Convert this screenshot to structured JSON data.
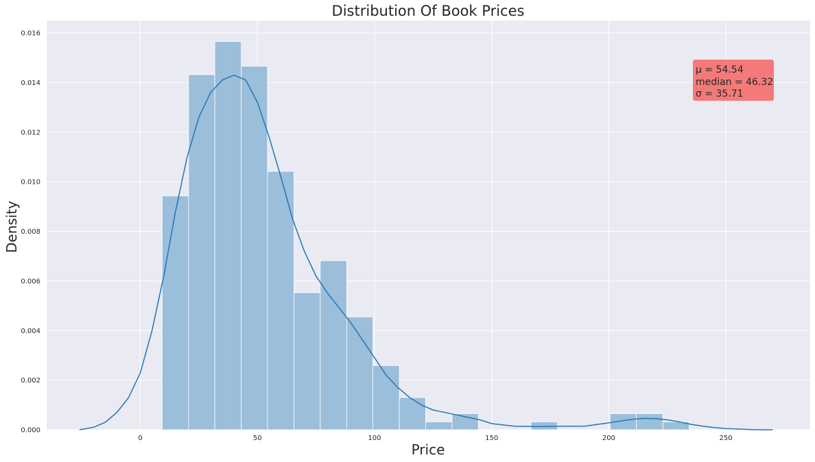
{
  "chart_data": {
    "type": "bar",
    "title": "Distribution Of Book Prices",
    "xlabel": "Price",
    "ylabel": "Density",
    "xlim": [
      -40,
      286
    ],
    "ylim": [
      0,
      0.0165
    ],
    "grid": true,
    "xticks": [
      0,
      50,
      100,
      150,
      200,
      250
    ],
    "yticks": [
      0.0,
      0.002,
      0.004,
      0.006,
      0.008,
      0.01,
      0.012,
      0.014,
      0.016
    ],
    "ytick_labels": [
      "0.000",
      "0.002",
      "0.004",
      "0.006",
      "0.008",
      "0.010",
      "0.012",
      "0.014",
      "0.016"
    ],
    "histogram": {
      "color": "#9bbedb",
      "bins": [
        {
          "x0": 9.3,
          "x1": 20.6,
          "density": 0.00943
        },
        {
          "x0": 20.6,
          "x1": 31.8,
          "density": 0.01432
        },
        {
          "x0": 31.8,
          "x1": 43.1,
          "density": 0.01566
        },
        {
          "x0": 43.1,
          "x1": 54.3,
          "density": 0.01466
        },
        {
          "x0": 54.3,
          "x1": 65.6,
          "density": 0.01042
        },
        {
          "x0": 65.6,
          "x1": 76.8,
          "density": 0.00553
        },
        {
          "x0": 76.8,
          "x1": 88.1,
          "density": 0.00682
        },
        {
          "x0": 88.1,
          "x1": 99.3,
          "density": 0.00455
        },
        {
          "x0": 99.3,
          "x1": 110.6,
          "density": 0.00259
        },
        {
          "x0": 110.6,
          "x1": 121.8,
          "density": 0.0013
        },
        {
          "x0": 121.8,
          "x1": 133.1,
          "density": 0.00032
        },
        {
          "x0": 133.1,
          "x1": 144.3,
          "density": 0.00065
        },
        {
          "x0": 144.3,
          "x1": 155.6,
          "density": 0
        },
        {
          "x0": 155.6,
          "x1": 166.8,
          "density": 0
        },
        {
          "x0": 166.8,
          "x1": 178.1,
          "density": 0.00032
        },
        {
          "x0": 178.1,
          "x1": 189.3,
          "density": 0
        },
        {
          "x0": 189.3,
          "x1": 200.6,
          "density": 0
        },
        {
          "x0": 200.6,
          "x1": 211.8,
          "density": 0.00065
        },
        {
          "x0": 211.8,
          "x1": 223.1,
          "density": 0.00065
        },
        {
          "x0": 223.1,
          "x1": 234.3,
          "density": 0.00032
        }
      ]
    },
    "kde": {
      "color": "#1f77b4",
      "x": [
        -26,
        -20,
        -15,
        -10,
        -5,
        0,
        5,
        10,
        15,
        20,
        25,
        30,
        35,
        40,
        45,
        50,
        55,
        60,
        65,
        70,
        75,
        80,
        85,
        90,
        95,
        100,
        105,
        110,
        115,
        120,
        125,
        130,
        135,
        140,
        145,
        150,
        160,
        170,
        180,
        190,
        200,
        205,
        210,
        215,
        220,
        225,
        230,
        235,
        240,
        245,
        250,
        255,
        260,
        265,
        270
      ],
      "y": [
        0.0,
        0.0001,
        0.0003,
        0.0007,
        0.0013,
        0.0023,
        0.004,
        0.0062,
        0.0088,
        0.011,
        0.0126,
        0.0136,
        0.0141,
        0.0143,
        0.0141,
        0.0132,
        0.0118,
        0.0102,
        0.0085,
        0.0072,
        0.0062,
        0.0055,
        0.0049,
        0.0043,
        0.0036,
        0.0029,
        0.0022,
        0.0017,
        0.0013,
        0.001,
        0.0008,
        0.0007,
        0.0006,
        0.0005,
        0.0004,
        0.00025,
        0.00014,
        0.00013,
        0.00014,
        0.00015,
        0.00028,
        0.00035,
        0.00042,
        0.00046,
        0.00045,
        0.0004,
        0.00032,
        0.00022,
        0.00015,
        9e-05,
        5e-05,
        3e-05,
        1e-05,
        0.0,
        0.0
      ]
    },
    "annotation": {
      "lines": [
        "μ = 54.54",
        "median = 46.32",
        "σ = 35.71"
      ],
      "background": "#f47a7a"
    },
    "colors": {
      "plot_background": "#eaeaf2",
      "grid": "#ffffff"
    }
  }
}
